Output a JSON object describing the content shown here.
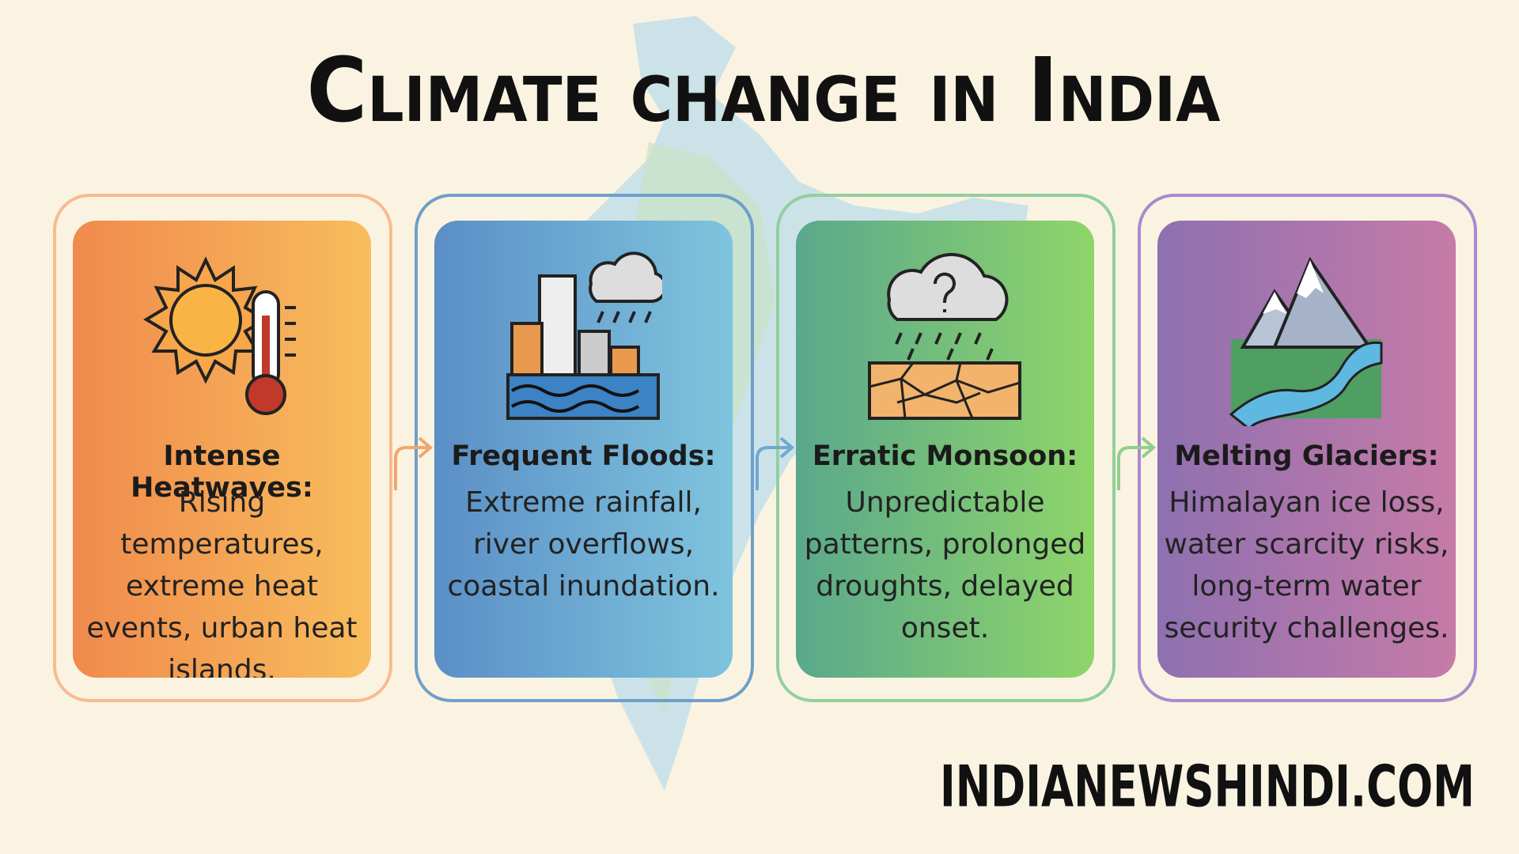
{
  "title": "Climate change in India",
  "cards": [
    {
      "heading": "Intense Heatwaves:",
      "body": "Rising temperatures, extreme heat events, urban heat islands."
    },
    {
      "heading": "Frequent Floods:",
      "body": "Extreme rainfall, river overflows, coastal inundation."
    },
    {
      "heading": "Erratic Monsoon:",
      "body": "Unpredictable patterns, prolonged droughts, delayed onset."
    },
    {
      "heading": "Melting Glaciers:",
      "body": "Himalayan ice loss, water scarcity risks, long-term water security challenges."
    }
  ],
  "footer": "INDIANEWSHINDI.COM"
}
